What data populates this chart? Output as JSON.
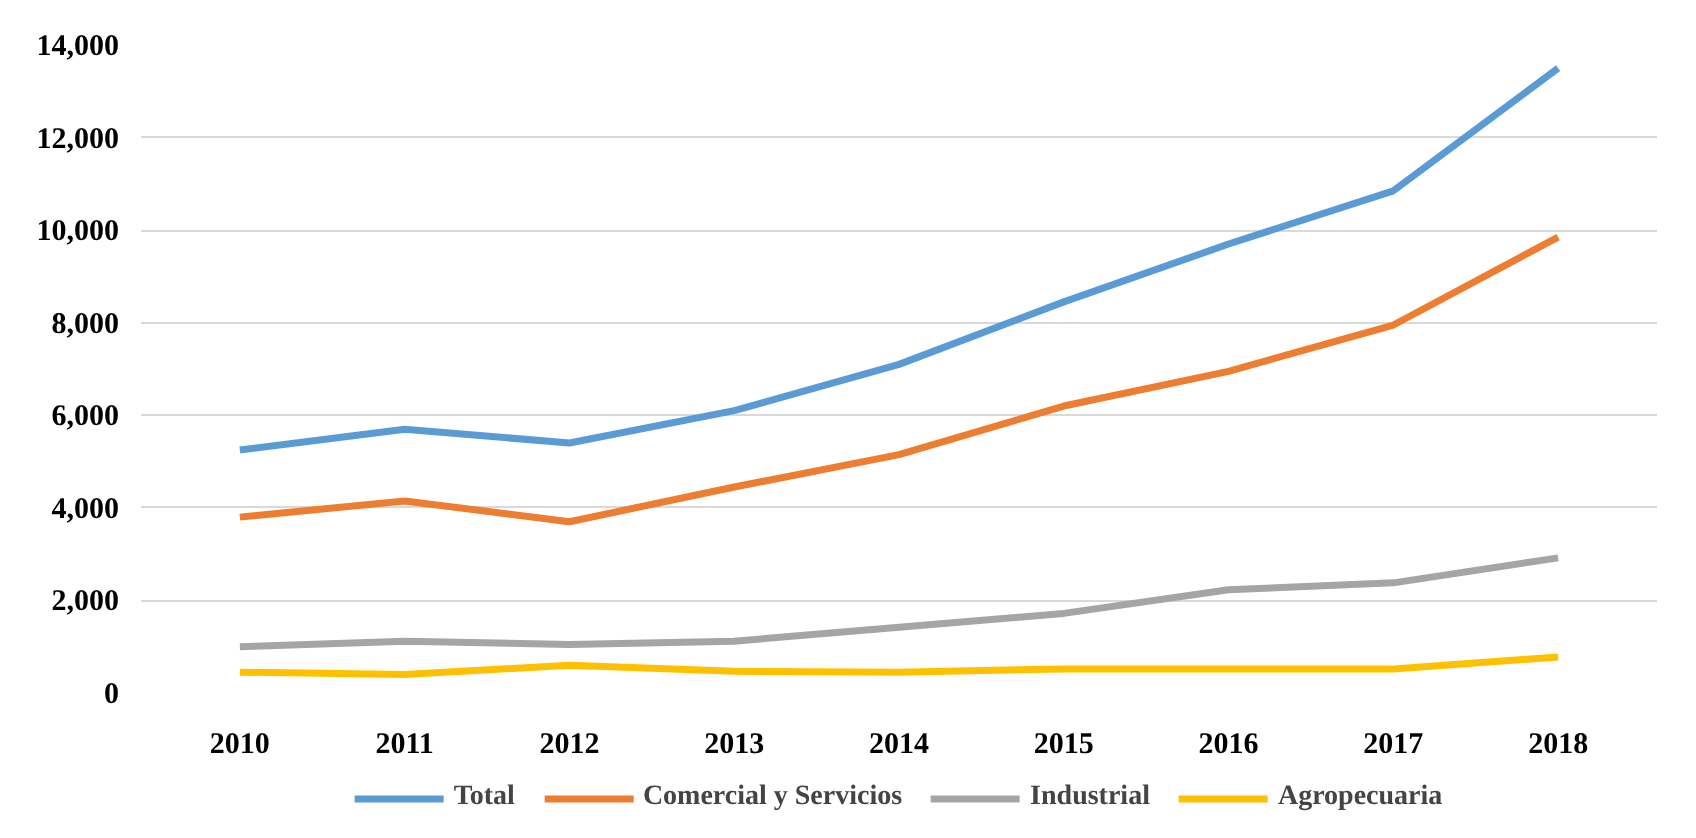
{
  "chart_data": {
    "type": "line",
    "categories": [
      "2010",
      "2011",
      "2012",
      "2013",
      "2014",
      "2015",
      "2016",
      "2017",
      "2018"
    ],
    "series": [
      {
        "name": "Total",
        "color": "#5b9bd5",
        "values": [
          5250,
          5700,
          5400,
          6100,
          7100,
          8450,
          9700,
          10850,
          13500
        ]
      },
      {
        "name": "Comercial y Servicios",
        "color": "#ed7d31",
        "values": [
          3800,
          4150,
          3700,
          4450,
          5150,
          6200,
          6950,
          7950,
          9850
        ]
      },
      {
        "name": "Industrial",
        "color": "#a5a5a5",
        "values": [
          1000,
          1120,
          1050,
          1120,
          1420,
          1720,
          2230,
          2380,
          2920
        ]
      },
      {
        "name": "Agropecuaria",
        "color": "#ffc000",
        "values": [
          450,
          400,
          600,
          470,
          450,
          520,
          520,
          520,
          780
        ]
      }
    ],
    "ylim": [
      0,
      14000
    ],
    "yticks": [
      {
        "value": 0,
        "label": "0"
      },
      {
        "value": 2000,
        "label": "2,000"
      },
      {
        "value": 4000,
        "label": "4,000"
      },
      {
        "value": 6000,
        "label": "6,000"
      },
      {
        "value": 8000,
        "label": "8,000"
      },
      {
        "value": 10000,
        "label": "10,000"
      },
      {
        "value": 12000,
        "label": "12,000"
      },
      {
        "value": 14000,
        "label": "14,000"
      }
    ],
    "grid": "y",
    "legend": "bottom",
    "marker": "none",
    "line_style": "solid"
  }
}
